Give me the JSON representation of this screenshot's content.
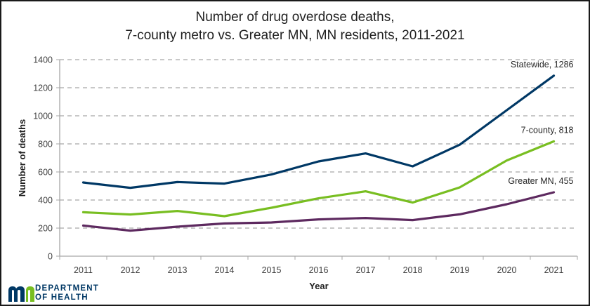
{
  "chart_data": {
    "type": "line",
    "title": "Number of drug overdose deaths,",
    "subtitle": "7-county metro vs. Greater MN, MN residents, 2011-2021",
    "xlabel": "Year",
    "ylabel": "Number of deaths",
    "ylim": [
      0,
      1400
    ],
    "yticks": [
      "0",
      "200",
      "400",
      "600",
      "800",
      "1000",
      "1200",
      "1400"
    ],
    "ytick_values": [
      0,
      200,
      400,
      600,
      800,
      1000,
      1200,
      1400
    ],
    "categories": [
      "2011",
      "2012",
      "2013",
      "2014",
      "2015",
      "2016",
      "2017",
      "2018",
      "2019",
      "2020",
      "2021"
    ],
    "grid": true,
    "legend": "none (end-of-line labels)",
    "series": [
      {
        "name": "Statewide",
        "color": "#003865",
        "values": [
          525,
          487,
          528,
          517,
          582,
          675,
          732,
          640,
          794,
          1040,
          1286
        ],
        "label": "Statewide, 1286"
      },
      {
        "name": "7-county",
        "color": "#78be21",
        "values": [
          313,
          297,
          322,
          285,
          345,
          412,
          462,
          382,
          490,
          682,
          818
        ],
        "label": "7-county, 818"
      },
      {
        "name": "Greater MN",
        "color": "#5d295f",
        "values": [
          218,
          182,
          210,
          233,
          240,
          262,
          272,
          257,
          298,
          370,
          455
        ],
        "label": "Greater MN, 455"
      }
    ]
  },
  "footer": {
    "logo_line1": "DEPARTMENT",
    "logo_line2": "OF HEALTH"
  }
}
